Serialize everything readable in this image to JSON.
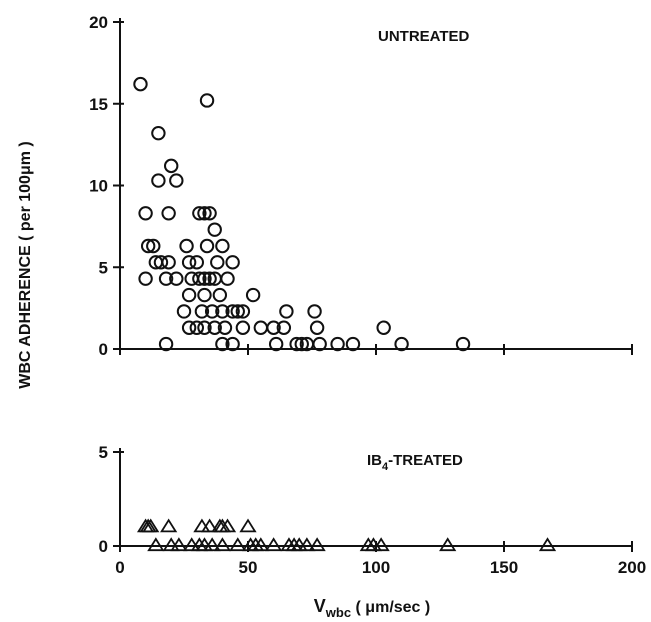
{
  "chart_data": [
    {
      "type": "scatter",
      "panel": "top",
      "label": "UNTREATED",
      "marker": "circle",
      "ylabel": "WBC ADHERENCE ( per 100μm )",
      "xlim": [
        0,
        200
      ],
      "ylim": [
        0,
        20
      ],
      "y_ticks": [
        0,
        5,
        10,
        15,
        20
      ],
      "x_tick_marks": [
        0,
        50,
        100,
        150,
        200
      ],
      "points": [
        {
          "x": 8,
          "y": 16.2
        },
        {
          "x": 34,
          "y": 15.2
        },
        {
          "x": 15,
          "y": 13.2
        },
        {
          "x": 20,
          "y": 11.2
        },
        {
          "x": 15,
          "y": 10.3
        },
        {
          "x": 22,
          "y": 10.3
        },
        {
          "x": 10,
          "y": 8.3
        },
        {
          "x": 19,
          "y": 8.3
        },
        {
          "x": 31,
          "y": 8.3
        },
        {
          "x": 33,
          "y": 8.3
        },
        {
          "x": 35,
          "y": 8.3
        },
        {
          "x": 37,
          "y": 7.3
        },
        {
          "x": 11,
          "y": 6.3
        },
        {
          "x": 13,
          "y": 6.3
        },
        {
          "x": 26,
          "y": 6.3
        },
        {
          "x": 34,
          "y": 6.3
        },
        {
          "x": 40,
          "y": 6.3
        },
        {
          "x": 14,
          "y": 5.3
        },
        {
          "x": 16,
          "y": 5.3
        },
        {
          "x": 19,
          "y": 5.3
        },
        {
          "x": 27,
          "y": 5.3
        },
        {
          "x": 30,
          "y": 5.3
        },
        {
          "x": 38,
          "y": 5.3
        },
        {
          "x": 44,
          "y": 5.3
        },
        {
          "x": 10,
          "y": 4.3
        },
        {
          "x": 18,
          "y": 4.3
        },
        {
          "x": 22,
          "y": 4.3
        },
        {
          "x": 28,
          "y": 4.3
        },
        {
          "x": 31,
          "y": 4.3
        },
        {
          "x": 33,
          "y": 4.3
        },
        {
          "x": 35,
          "y": 4.3
        },
        {
          "x": 37,
          "y": 4.3
        },
        {
          "x": 42,
          "y": 4.3
        },
        {
          "x": 27,
          "y": 3.3
        },
        {
          "x": 33,
          "y": 3.3
        },
        {
          "x": 39,
          "y": 3.3
        },
        {
          "x": 52,
          "y": 3.3
        },
        {
          "x": 25,
          "y": 2.3
        },
        {
          "x": 32,
          "y": 2.3
        },
        {
          "x": 36,
          "y": 2.3
        },
        {
          "x": 40,
          "y": 2.3
        },
        {
          "x": 44,
          "y": 2.3
        },
        {
          "x": 46,
          "y": 2.3
        },
        {
          "x": 48,
          "y": 2.3
        },
        {
          "x": 65,
          "y": 2.3
        },
        {
          "x": 76,
          "y": 2.3
        },
        {
          "x": 27,
          "y": 1.3
        },
        {
          "x": 30,
          "y": 1.3
        },
        {
          "x": 33,
          "y": 1.3
        },
        {
          "x": 37,
          "y": 1.3
        },
        {
          "x": 41,
          "y": 1.3
        },
        {
          "x": 48,
          "y": 1.3
        },
        {
          "x": 55,
          "y": 1.3
        },
        {
          "x": 60,
          "y": 1.3
        },
        {
          "x": 64,
          "y": 1.3
        },
        {
          "x": 77,
          "y": 1.3
        },
        {
          "x": 103,
          "y": 1.3
        },
        {
          "x": 18,
          "y": 0.3
        },
        {
          "x": 40,
          "y": 0.3
        },
        {
          "x": 44,
          "y": 0.3
        },
        {
          "x": 61,
          "y": 0.3
        },
        {
          "x": 69,
          "y": 0.3
        },
        {
          "x": 71,
          "y": 0.3
        },
        {
          "x": 73,
          "y": 0.3
        },
        {
          "x": 78,
          "y": 0.3
        },
        {
          "x": 85,
          "y": 0.3
        },
        {
          "x": 91,
          "y": 0.3
        },
        {
          "x": 110,
          "y": 0.3
        },
        {
          "x": 134,
          "y": 0.3
        }
      ]
    },
    {
      "type": "scatter",
      "panel": "bottom",
      "label": "IB4-TREATED",
      "label_main": "IB",
      "label_sub": "4",
      "label_rest": "-TREATED",
      "marker": "triangle",
      "xlabel": "Vwbc ( μm/sec )",
      "xlabel_main": "V",
      "xlabel_sub": "wbc",
      "xlabel_rest": " ( μm/sec )",
      "xlim": [
        0,
        200
      ],
      "ylim": [
        0,
        5
      ],
      "y_ticks": [
        0,
        5
      ],
      "x_ticks": [
        0,
        50,
        100,
        150,
        200
      ],
      "points": [
        {
          "x": 10,
          "y": 1
        },
        {
          "x": 11,
          "y": 1
        },
        {
          "x": 12,
          "y": 1
        },
        {
          "x": 19,
          "y": 1
        },
        {
          "x": 32,
          "y": 1
        },
        {
          "x": 35,
          "y": 1
        },
        {
          "x": 39,
          "y": 1
        },
        {
          "x": 40,
          "y": 1
        },
        {
          "x": 42,
          "y": 1
        },
        {
          "x": 50,
          "y": 1
        },
        {
          "x": 14,
          "y": 0
        },
        {
          "x": 20,
          "y": 0
        },
        {
          "x": 23,
          "y": 0
        },
        {
          "x": 28,
          "y": 0
        },
        {
          "x": 31,
          "y": 0
        },
        {
          "x": 33,
          "y": 0
        },
        {
          "x": 36,
          "y": 0
        },
        {
          "x": 40,
          "y": 0
        },
        {
          "x": 46,
          "y": 0
        },
        {
          "x": 51,
          "y": 0
        },
        {
          "x": 53,
          "y": 0
        },
        {
          "x": 55,
          "y": 0
        },
        {
          "x": 60,
          "y": 0
        },
        {
          "x": 66,
          "y": 0
        },
        {
          "x": 68,
          "y": 0
        },
        {
          "x": 70,
          "y": 0
        },
        {
          "x": 73,
          "y": 0
        },
        {
          "x": 77,
          "y": 0
        },
        {
          "x": 97,
          "y": 0
        },
        {
          "x": 99,
          "y": 0
        },
        {
          "x": 102,
          "y": 0
        },
        {
          "x": 128,
          "y": 0
        },
        {
          "x": 167,
          "y": 0
        }
      ]
    }
  ]
}
